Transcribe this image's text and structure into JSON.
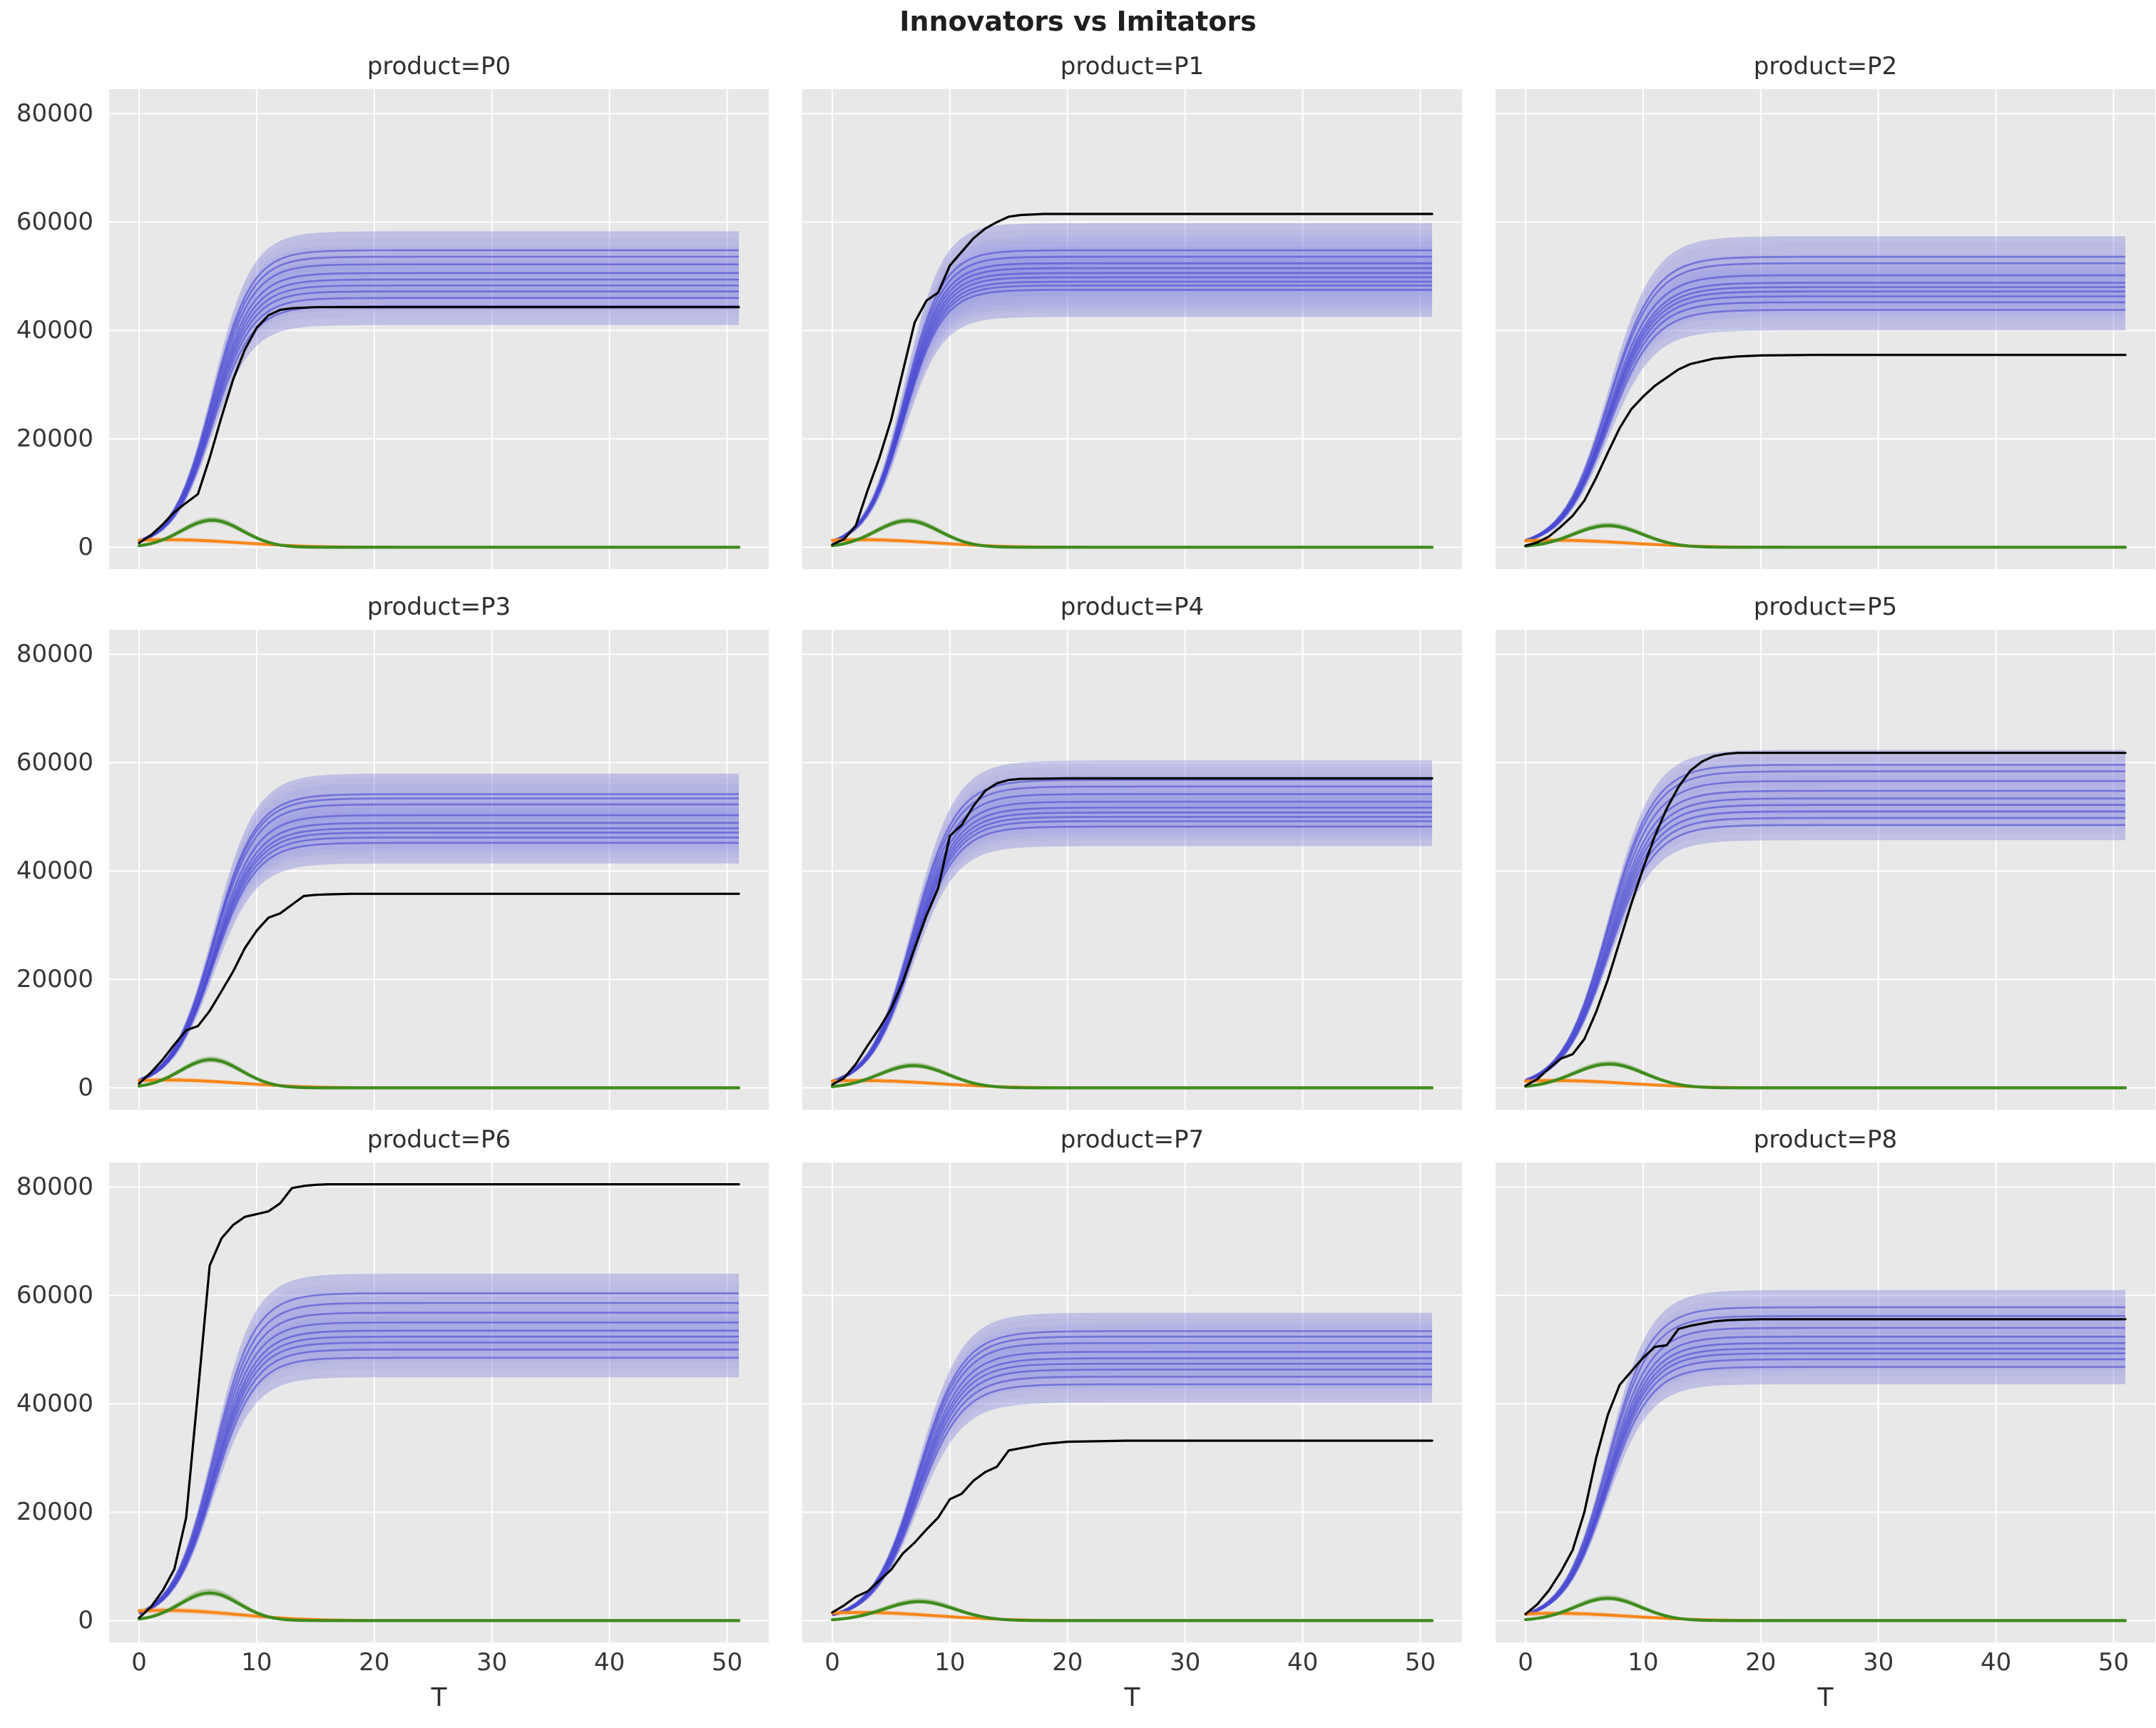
{
  "title": "Innovators vs Imitators",
  "colors": {
    "panel": "#e8e8e8",
    "grid": "#ffffff",
    "black": "#000000",
    "blue_band": "rgba(110,110,222,0.28)",
    "blue_band_inner": "rgba(110,110,222,0.07)",
    "blue_line": "rgba(72,72,210,0.60)",
    "green": "#3e8b1e",
    "green_soft": "rgba(70,138,28,0.25)",
    "orange": "#f8861b",
    "orange_soft": "rgba(252,134,18,0.25)",
    "tick_text": "#363636",
    "title_text": "#1f1f1f"
  },
  "chart_data": {
    "type": "line",
    "title": "Innovators vs Imitators",
    "xlabel": "T",
    "ylabel": "",
    "x_ticks": [
      0,
      10,
      20,
      30,
      40,
      50
    ],
    "y_ticks": [
      0,
      20000,
      40000,
      60000,
      80000
    ],
    "xlim": [
      -2.55,
      53.55
    ],
    "ylim": [
      -4025,
      84525
    ],
    "x_end": 51,
    "grid": true,
    "legend": "none",
    "series_semantics": {
      "black_line": "observed adoption curve",
      "blue": "simulated imitators trajectories (lines with uncertainty bands)",
      "green": "simulated imitator-rate bump curves",
      "orange": "simulated innovator curves decaying to zero"
    },
    "facets": [
      {
        "label": "product=P0",
        "black_line": {
          "x": [
            0,
            1,
            2,
            3,
            4,
            5,
            6,
            7,
            8,
            9,
            10,
            11,
            12,
            13,
            15,
            20,
            51
          ],
          "y": [
            800,
            2200,
            4200,
            6500,
            8200,
            9800,
            16500,
            24000,
            31000,
            36500,
            40500,
            42800,
            43800,
            44100,
            44300,
            44300,
            44300
          ]
        },
        "blue": {
          "finals": [
            44500,
            46000,
            47200,
            48300,
            49400,
            50600,
            52200,
            53600,
            54800
          ],
          "k": 0.6,
          "t0": 6.2,
          "band_delta": 3500
        },
        "green": {
          "peaks": [
            4700,
            5000,
            5200,
            5400
          ],
          "t_peak": 6.2,
          "sigma": 2.6
        },
        "orange": {
          "starts": [
            1200,
            1400,
            1600
          ],
          "t_peak": 2.5,
          "sigma": 6.0
        }
      },
      {
        "label": "product=P1",
        "black_line": {
          "x": [
            0,
            1,
            2,
            3,
            4,
            5,
            6,
            7,
            8,
            9,
            10,
            11,
            12,
            13,
            14,
            15,
            16,
            18,
            51
          ],
          "y": [
            500,
            1500,
            4000,
            10500,
            16500,
            23500,
            32500,
            41500,
            45500,
            47000,
            52000,
            54500,
            57000,
            58800,
            60000,
            61000,
            61300,
            61500,
            61500
          ]
        },
        "blue": {
          "finals": [
            47500,
            48300,
            49000,
            49800,
            50600,
            51500,
            52400,
            53600,
            54800
          ],
          "k": 0.62,
          "t0": 6.1,
          "band_delta": 5000
        },
        "green": {
          "peaks": [
            4600,
            4900,
            5100,
            5300
          ],
          "t_peak": 6.4,
          "sigma": 2.7
        },
        "orange": {
          "starts": [
            1200,
            1400,
            1600
          ],
          "t_peak": 2.5,
          "sigma": 6.0
        }
      },
      {
        "label": "product=P2",
        "black_line": {
          "x": [
            0,
            1,
            2,
            3,
            4,
            5,
            6,
            7,
            8,
            9,
            10,
            11,
            12,
            13,
            14,
            15,
            16,
            17,
            18,
            20,
            25,
            51
          ],
          "y": [
            300,
            900,
            2000,
            3800,
            5800,
            8600,
            12800,
            17500,
            22000,
            25500,
            27800,
            29800,
            31300,
            32800,
            33800,
            34300,
            34800,
            35000,
            35200,
            35400,
            35500,
            35500
          ]
        },
        "blue": {
          "finals": [
            43800,
            45200,
            46300,
            47200,
            48000,
            48800,
            50200,
            52400,
            53600
          ],
          "k": 0.52,
          "t0": 7.0,
          "band_delta": 3800
        },
        "green": {
          "peaks": [
            3800,
            4000,
            4200,
            4400
          ],
          "t_peak": 7.0,
          "sigma": 2.9
        },
        "orange": {
          "starts": [
            1100,
            1300,
            1500
          ],
          "t_peak": 2.5,
          "sigma": 6.2
        }
      },
      {
        "label": "product=P3",
        "black_line": {
          "x": [
            0,
            1,
            2,
            3,
            4,
            5,
            6,
            7,
            8,
            9,
            10,
            11,
            12,
            13,
            14,
            15,
            16,
            18,
            51
          ],
          "y": [
            800,
            2800,
            5200,
            8000,
            10600,
            11400,
            14200,
            17800,
            21500,
            25800,
            29000,
            31400,
            32200,
            33800,
            35400,
            35600,
            35700,
            35800,
            35800
          ]
        },
        "blue": {
          "finals": [
            45200,
            46200,
            47100,
            47900,
            48900,
            50300,
            52300,
            53400,
            54200
          ],
          "k": 0.56,
          "t0": 6.3,
          "band_delta": 3800
        },
        "green": {
          "peaks": [
            4900,
            5200,
            5400,
            5600
          ],
          "t_peak": 6.1,
          "sigma": 2.6
        },
        "orange": {
          "starts": [
            1250,
            1450,
            1650
          ],
          "t_peak": 2.5,
          "sigma": 6.0
        }
      },
      {
        "label": "product=P4",
        "black_line": {
          "x": [
            0,
            1,
            2,
            3,
            4,
            5,
            6,
            7,
            8,
            9,
            10,
            11,
            12,
            13,
            14,
            15,
            16,
            20,
            51
          ],
          "y": [
            600,
            1800,
            4400,
            7800,
            11000,
            14600,
            19600,
            25800,
            31800,
            36800,
            46500,
            48500,
            52000,
            54800,
            56200,
            56800,
            57000,
            57100,
            57100
          ]
        },
        "blue": {
          "finals": [
            48200,
            49200,
            50000,
            50800,
            51700,
            52800,
            54200,
            55600,
            56800
          ],
          "k": 0.55,
          "t0": 6.8,
          "band_delta": 3600
        },
        "green": {
          "peaks": [
            3900,
            4100,
            4300,
            4500
          ],
          "t_peak": 6.9,
          "sigma": 2.9
        },
        "orange": {
          "starts": [
            1150,
            1350,
            1550
          ],
          "t_peak": 2.5,
          "sigma": 6.2
        }
      },
      {
        "label": "product=P5",
        "black_line": {
          "x": [
            0,
            1,
            2,
            3,
            4,
            5,
            6,
            7,
            8,
            9,
            10,
            11,
            12,
            13,
            14,
            15,
            16,
            17,
            18,
            51
          ],
          "y": [
            400,
            1600,
            3600,
            5400,
            6200,
            9000,
            14000,
            20000,
            27000,
            34000,
            40500,
            46500,
            51500,
            55500,
            58500,
            60200,
            61200,
            61600,
            61800,
            61800
          ]
        },
        "blue": {
          "finals": [
            48500,
            49800,
            51000,
            52200,
            53400,
            54800,
            56600,
            58400,
            59600
          ],
          "k": 0.52,
          "t0": 7.0,
          "band_delta": 2800
        },
        "green": {
          "peaks": [
            4200,
            4400,
            4600,
            4800
          ],
          "t_peak": 7.1,
          "sigma": 3.0
        },
        "orange": {
          "starts": [
            1150,
            1350,
            1550
          ],
          "t_peak": 2.5,
          "sigma": 6.2
        }
      },
      {
        "label": "product=P6",
        "black_line": {
          "x": [
            0,
            1,
            2,
            3,
            4,
            5,
            6,
            7,
            8,
            9,
            10,
            11,
            12,
            13,
            14,
            15,
            16,
            51
          ],
          "y": [
            500,
            2500,
            5500,
            9500,
            19000,
            42000,
            65500,
            70500,
            73000,
            74500,
            75000,
            75500,
            77000,
            79800,
            80200,
            80400,
            80500,
            80500
          ]
        },
        "blue": {
          "finals": [
            48500,
            50000,
            51300,
            52400,
            53500,
            55000,
            56800,
            58600,
            60400
          ],
          "k": 0.58,
          "t0": 6.3,
          "band_delta": 3600
        },
        "green": {
          "peaks": [
            4800,
            5100,
            5400,
            5700
          ],
          "t_peak": 6.0,
          "sigma": 2.5
        },
        "orange": {
          "starts": [
            1600,
            1900,
            2200
          ],
          "t_peak": 2.2,
          "sigma": 6.0
        }
      },
      {
        "label": "product=P7",
        "black_line": {
          "x": [
            0,
            1,
            2,
            3,
            4,
            5,
            6,
            7,
            8,
            9,
            10,
            11,
            12,
            13,
            14,
            15,
            16,
            17,
            18,
            20,
            25,
            51
          ],
          "y": [
            1500,
            2800,
            4400,
            5400,
            7400,
            9400,
            12400,
            14400,
            16800,
            19000,
            22400,
            23400,
            25800,
            27400,
            28400,
            31400,
            31800,
            32200,
            32600,
            33000,
            33200,
            33200
          ]
        },
        "blue": {
          "finals": [
            43600,
            45000,
            46300,
            47400,
            48400,
            49600,
            51200,
            52400,
            53400
          ],
          "k": 0.53,
          "t0": 7.2,
          "band_delta": 3400
        },
        "green": {
          "peaks": [
            3300,
            3500,
            3700,
            3900
          ],
          "t_peak": 7.4,
          "sigma": 3.0
        },
        "orange": {
          "starts": [
            1300,
            1500,
            1700
          ],
          "t_peak": 2.5,
          "sigma": 6.2
        }
      },
      {
        "label": "product=P8",
        "black_line": {
          "x": [
            0,
            1,
            2,
            3,
            4,
            5,
            6,
            7,
            8,
            9,
            10,
            11,
            12,
            13,
            14,
            15,
            16,
            17,
            18,
            20,
            51
          ],
          "y": [
            1200,
            3000,
            5600,
            9000,
            13000,
            20000,
            30000,
            38000,
            43500,
            46000,
            48500,
            50500,
            50800,
            53800,
            54400,
            54800,
            55200,
            55400,
            55500,
            55600,
            55600
          ]
        },
        "blue": {
          "finals": [
            46800,
            48200,
            49300,
            50200,
            51200,
            52400,
            54000,
            56200,
            57800
          ],
          "k": 0.55,
          "t0": 6.9,
          "band_delta": 3200
        },
        "green": {
          "peaks": [
            3900,
            4100,
            4300,
            4500
          ],
          "t_peak": 7.0,
          "sigma": 2.8
        },
        "orange": {
          "starts": [
            1150,
            1350,
            1550
          ],
          "t_peak": 2.5,
          "sigma": 6.2
        }
      }
    ]
  }
}
